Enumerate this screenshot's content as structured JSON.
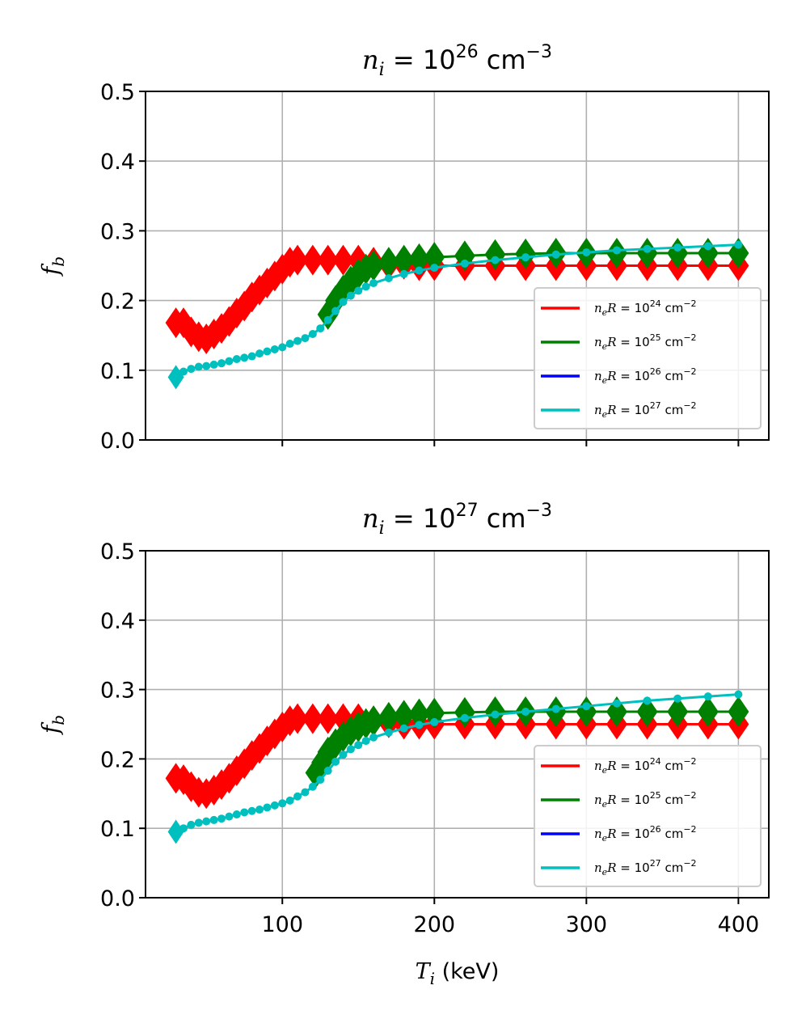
{
  "chart_data": [
    {
      "type": "scatter",
      "title": "n_i = 10^26 cm^-3",
      "title_parts": {
        "var": "n",
        "sub": "i",
        "eq": " = 10",
        "sup": "26",
        "unit": " cm",
        "unit_sup": "−3"
      },
      "xlabel": "",
      "ylabel": "f_b",
      "ylabel_parts": {
        "var": "f",
        "sub": "b"
      },
      "xlim": [
        10,
        420
      ],
      "ylim": [
        0,
        0.5
      ],
      "yticks": [
        "0.0",
        "0.1",
        "0.2",
        "0.3",
        "0.4",
        "0.5"
      ],
      "xticks": [
        100,
        200,
        300,
        400
      ],
      "show_xtick_labels": false,
      "grid": true,
      "legend_position": "lower-right",
      "series": [
        {
          "name": "n_eR = 10^24 cm^-2",
          "label": {
            "var": "n",
            "sub": "e",
            "rest": "R = 10",
            "sup": "24",
            "unit": " cm",
            "unit_sup": "−2"
          },
          "color": "#ff0000",
          "marker": "diamond",
          "x": [
            30,
            35,
            40,
            45,
            50,
            55,
            60,
            65,
            70,
            75,
            80,
            85,
            90,
            95,
            100,
            105,
            110,
            120,
            130,
            140,
            150,
            160,
            170,
            180,
            190,
            200,
            220,
            240,
            260,
            280,
            300,
            320,
            340,
            360,
            380,
            400
          ],
          "y": [
            0.168,
            0.168,
            0.155,
            0.148,
            0.145,
            0.152,
            0.16,
            0.17,
            0.182,
            0.192,
            0.205,
            0.215,
            0.225,
            0.235,
            0.245,
            0.255,
            0.258,
            0.258,
            0.258,
            0.258,
            0.258,
            0.255,
            0.252,
            0.252,
            0.25,
            0.25,
            0.25,
            0.25,
            0.25,
            0.25,
            0.25,
            0.25,
            0.25,
            0.25,
            0.25,
            0.25
          ]
        },
        {
          "name": "n_eR = 10^25 cm^-2",
          "label": {
            "var": "n",
            "sub": "e",
            "rest": "R = 10",
            "sup": "25",
            "unit": " cm",
            "unit_sup": "−2"
          },
          "color": "#008000",
          "marker": "diamond",
          "x": [
            130,
            135,
            140,
            145,
            150,
            155,
            160,
            170,
            180,
            190,
            200,
            220,
            240,
            260,
            280,
            300,
            320,
            340,
            360,
            380,
            400
          ],
          "y": [
            0.18,
            0.2,
            0.215,
            0.228,
            0.238,
            0.245,
            0.25,
            0.255,
            0.258,
            0.26,
            0.262,
            0.264,
            0.266,
            0.267,
            0.268,
            0.268,
            0.268,
            0.268,
            0.268,
            0.268,
            0.268
          ]
        },
        {
          "name": "n_eR = 10^26 cm^-2",
          "label": {
            "var": "n",
            "sub": "e",
            "rest": "R = 10",
            "sup": "26",
            "unit": " cm",
            "unit_sup": "−2"
          },
          "color": "#0000ff",
          "marker": "none",
          "x": [],
          "y": []
        },
        {
          "name": "n_eR = 10^27 cm^-2",
          "label": {
            "var": "n",
            "sub": "e",
            "rest": "R = 10",
            "sup": "27",
            "unit": " cm",
            "unit_sup": "−2"
          },
          "color": "#00bfbf",
          "marker": "circle",
          "x": [
            30,
            35,
            40,
            45,
            50,
            55,
            60,
            65,
            70,
            75,
            80,
            85,
            90,
            95,
            100,
            105,
            110,
            115,
            120,
            125,
            130,
            135,
            140,
            145,
            150,
            155,
            160,
            170,
            180,
            190,
            200,
            220,
            240,
            260,
            280,
            300,
            320,
            340,
            360,
            380,
            400
          ],
          "y": [
            0.09,
            0.098,
            0.102,
            0.105,
            0.106,
            0.108,
            0.11,
            0.113,
            0.116,
            0.118,
            0.12,
            0.124,
            0.127,
            0.13,
            0.133,
            0.138,
            0.142,
            0.146,
            0.152,
            0.16,
            0.172,
            0.185,
            0.198,
            0.207,
            0.214,
            0.22,
            0.225,
            0.232,
            0.238,
            0.243,
            0.247,
            0.253,
            0.258,
            0.262,
            0.266,
            0.269,
            0.272,
            0.274,
            0.276,
            0.278,
            0.28
          ]
        }
      ]
    },
    {
      "type": "scatter",
      "title": "n_i = 10^27 cm^-3",
      "title_parts": {
        "var": "n",
        "sub": "i",
        "eq": " = 10",
        "sup": "27",
        "unit": " cm",
        "unit_sup": "−3"
      },
      "xlabel": "T_i (keV)",
      "xlabel_parts": {
        "var": "T",
        "sub": "i",
        "rest": " (keV)"
      },
      "ylabel": "f_b",
      "ylabel_parts": {
        "var": "f",
        "sub": "b"
      },
      "xlim": [
        10,
        420
      ],
      "ylim": [
        0,
        0.5
      ],
      "yticks": [
        "0.0",
        "0.1",
        "0.2",
        "0.3",
        "0.4",
        "0.5"
      ],
      "xticks": [
        100,
        200,
        300,
        400
      ],
      "xtick_labels": [
        "100",
        "200",
        "300",
        "400"
      ],
      "show_xtick_labels": true,
      "grid": true,
      "legend_position": "lower-right",
      "series": [
        {
          "name": "n_eR = 10^24 cm^-2",
          "label": {
            "var": "n",
            "sub": "e",
            "rest": "R = 10",
            "sup": "24",
            "unit": " cm",
            "unit_sup": "−2"
          },
          "color": "#ff0000",
          "marker": "diamond",
          "x": [
            30,
            35,
            40,
            45,
            50,
            55,
            60,
            65,
            70,
            75,
            80,
            85,
            90,
            95,
            100,
            105,
            110,
            120,
            130,
            140,
            150,
            160,
            170,
            180,
            190,
            200,
            220,
            240,
            260,
            280,
            300,
            320,
            340,
            360,
            380,
            400
          ],
          "y": [
            0.172,
            0.17,
            0.16,
            0.152,
            0.15,
            0.155,
            0.163,
            0.172,
            0.183,
            0.193,
            0.205,
            0.215,
            0.226,
            0.236,
            0.246,
            0.255,
            0.258,
            0.258,
            0.258,
            0.258,
            0.258,
            0.255,
            0.252,
            0.25,
            0.25,
            0.25,
            0.25,
            0.25,
            0.25,
            0.25,
            0.25,
            0.25,
            0.25,
            0.25,
            0.25,
            0.25
          ]
        },
        {
          "name": "n_eR = 10^25 cm^-2",
          "label": {
            "var": "n",
            "sub": "e",
            "rest": "R = 10",
            "sup": "25",
            "unit": " cm",
            "unit_sup": "−2"
          },
          "color": "#008000",
          "marker": "diamond",
          "x": [
            122,
            126,
            130,
            135,
            140,
            145,
            150,
            155,
            160,
            170,
            180,
            190,
            200,
            220,
            240,
            260,
            280,
            300,
            320,
            340,
            360,
            380,
            400
          ],
          "y": [
            0.18,
            0.195,
            0.21,
            0.222,
            0.232,
            0.24,
            0.246,
            0.251,
            0.255,
            0.26,
            0.263,
            0.265,
            0.266,
            0.267,
            0.268,
            0.268,
            0.268,
            0.268,
            0.268,
            0.268,
            0.268,
            0.268,
            0.268
          ]
        },
        {
          "name": "n_eR = 10^26 cm^-2",
          "label": {
            "var": "n",
            "sub": "e",
            "rest": "R = 10",
            "sup": "26",
            "unit": " cm",
            "unit_sup": "−2"
          },
          "color": "#0000ff",
          "marker": "none",
          "x": [],
          "y": []
        },
        {
          "name": "n_eR = 10^27 cm^-2",
          "label": {
            "var": "n",
            "sub": "e",
            "rest": "R = 10",
            "sup": "27",
            "unit": " cm",
            "unit_sup": "−2"
          },
          "color": "#00bfbf",
          "marker": "circle",
          "x": [
            30,
            35,
            40,
            45,
            50,
            55,
            60,
            65,
            70,
            75,
            80,
            85,
            90,
            95,
            100,
            105,
            110,
            115,
            120,
            125,
            130,
            135,
            140,
            145,
            150,
            155,
            160,
            170,
            180,
            190,
            200,
            220,
            240,
            260,
            280,
            300,
            320,
            340,
            360,
            380,
            400
          ],
          "y": [
            0.095,
            0.1,
            0.105,
            0.108,
            0.11,
            0.112,
            0.114,
            0.117,
            0.12,
            0.123,
            0.125,
            0.127,
            0.13,
            0.133,
            0.136,
            0.14,
            0.146,
            0.152,
            0.16,
            0.17,
            0.183,
            0.196,
            0.206,
            0.214,
            0.22,
            0.226,
            0.231,
            0.238,
            0.244,
            0.249,
            0.253,
            0.259,
            0.264,
            0.268,
            0.272,
            0.276,
            0.28,
            0.284,
            0.287,
            0.29,
            0.293
          ]
        }
      ]
    }
  ]
}
